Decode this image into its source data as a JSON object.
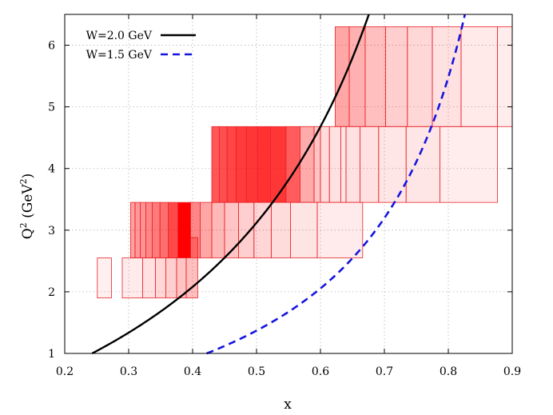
{
  "chart_data": {
    "type": "heatmap",
    "title": "",
    "xlabel": "x",
    "ylabel_main": "Q",
    "ylabel_sup1": "2",
    "ylabel_units": " (GeV",
    "ylabel_sup2": "2",
    "ylabel_close": ")",
    "xlim": [
      0.2,
      0.9
    ],
    "ylim": [
      1,
      6.5
    ],
    "xticks": [
      0.2,
      0.3,
      0.4,
      0.5,
      0.6,
      0.7,
      0.8,
      0.9
    ],
    "xtick_labels": [
      "0.2",
      "0.3",
      "0.4",
      "0.5",
      "0.6",
      "0.7",
      "0.8",
      "0.9"
    ],
    "yticks": [
      1,
      2,
      3,
      4,
      5,
      6
    ],
    "ytick_labels": [
      "1",
      "2",
      "3",
      "4",
      "5",
      "6"
    ],
    "grid": true,
    "legend_position": "top-left",
    "curves": [
      {
        "name": "W=2.0 GeV",
        "W": 2.0,
        "color": "#000000",
        "style": "solid"
      },
      {
        "name": "W=1.5 GeV",
        "W": 1.5,
        "color": "#1515e0",
        "style": "dashed"
      }
    ],
    "bin_color": "#ff0000",
    "bin_rows": [
      {
        "q2_low": 1.9,
        "q2_high": 2.55,
        "bins": [
          {
            "x_lo": 0.251,
            "x_hi": 0.273,
            "intensity": 0.02
          },
          {
            "x_lo": 0.29,
            "x_hi": 0.322,
            "intensity": 0.04
          },
          {
            "x_lo": 0.322,
            "x_hi": 0.342,
            "intensity": 0.08
          },
          {
            "x_lo": 0.342,
            "x_hi": 0.358,
            "intensity": 0.12
          },
          {
            "x_lo": 0.358,
            "x_hi": 0.375,
            "intensity": 0.16
          },
          {
            "x_lo": 0.375,
            "x_hi": 0.39,
            "intensity": 0.2
          }
        ]
      },
      {
        "q2_low": 1.9,
        "q2_high": 2.88,
        "bins": [
          {
            "x_lo": 0.39,
            "x_hi": 0.408,
            "intensity": 0.22
          }
        ]
      },
      {
        "q2_low": 2.55,
        "q2_high": 3.45,
        "bins": [
          {
            "x_lo": 0.303,
            "x_hi": 0.31,
            "intensity": 0.35
          },
          {
            "x_lo": 0.31,
            "x_hi": 0.318,
            "intensity": 0.38
          },
          {
            "x_lo": 0.318,
            "x_hi": 0.327,
            "intensity": 0.4
          },
          {
            "x_lo": 0.327,
            "x_hi": 0.337,
            "intensity": 0.45
          },
          {
            "x_lo": 0.337,
            "x_hi": 0.349,
            "intensity": 0.5
          },
          {
            "x_lo": 0.349,
            "x_hi": 0.362,
            "intensity": 0.55
          },
          {
            "x_lo": 0.362,
            "x_hi": 0.377,
            "intensity": 0.7
          },
          {
            "x_lo": 0.377,
            "x_hi": 0.397,
            "intensity": 1.0
          },
          {
            "x_lo": 0.397,
            "x_hi": 0.412,
            "intensity": 0.45
          },
          {
            "x_lo": 0.412,
            "x_hi": 0.43,
            "intensity": 0.32
          },
          {
            "x_lo": 0.43,
            "x_hi": 0.45,
            "intensity": 0.25
          },
          {
            "x_lo": 0.45,
            "x_hi": 0.472,
            "intensity": 0.2
          },
          {
            "x_lo": 0.472,
            "x_hi": 0.496,
            "intensity": 0.16
          },
          {
            "x_lo": 0.496,
            "x_hi": 0.523,
            "intensity": 0.13
          },
          {
            "x_lo": 0.523,
            "x_hi": 0.553,
            "intensity": 0.1
          },
          {
            "x_lo": 0.553,
            "x_hi": 0.595,
            "intensity": 0.07
          },
          {
            "x_lo": 0.595,
            "x_hi": 0.666,
            "intensity": 0.04
          }
        ]
      },
      {
        "q2_low": 3.45,
        "q2_high": 4.68,
        "bins": [
          {
            "x_lo": 0.43,
            "x_hi": 0.442,
            "intensity": 0.65
          },
          {
            "x_lo": 0.442,
            "x_hi": 0.454,
            "intensity": 0.68
          },
          {
            "x_lo": 0.454,
            "x_hi": 0.468,
            "intensity": 0.72
          },
          {
            "x_lo": 0.468,
            "x_hi": 0.484,
            "intensity": 0.76
          },
          {
            "x_lo": 0.484,
            "x_hi": 0.502,
            "intensity": 0.78
          },
          {
            "x_lo": 0.502,
            "x_hi": 0.522,
            "intensity": 0.8
          },
          {
            "x_lo": 0.522,
            "x_hi": 0.546,
            "intensity": 0.78
          },
          {
            "x_lo": 0.546,
            "x_hi": 0.568,
            "intensity": 0.62
          },
          {
            "x_lo": 0.568,
            "x_hi": 0.59,
            "intensity": 0.3
          },
          {
            "x_lo": 0.59,
            "x_hi": 0.6,
            "intensity": 0.2
          },
          {
            "x_lo": 0.6,
            "x_hi": 0.614,
            "intensity": 0.1
          },
          {
            "x_lo": 0.614,
            "x_hi": 0.632,
            "intensity": 0.08
          },
          {
            "x_lo": 0.632,
            "x_hi": 0.64,
            "intensity": 0.06
          },
          {
            "x_lo": 0.64,
            "x_hi": 0.662,
            "intensity": 0.08
          },
          {
            "x_lo": 0.662,
            "x_hi": 0.691,
            "intensity": 0.08
          },
          {
            "x_lo": 0.691,
            "x_hi": 0.734,
            "intensity": 0.06
          },
          {
            "x_lo": 0.734,
            "x_hi": 0.787,
            "intensity": 0.06
          },
          {
            "x_lo": 0.787,
            "x_hi": 0.877,
            "intensity": 0.03
          }
        ]
      },
      {
        "q2_low": 4.68,
        "q2_high": 6.3,
        "bins": [
          {
            "x_lo": 0.623,
            "x_hi": 0.645,
            "intensity": 0.32
          },
          {
            "x_lo": 0.645,
            "x_hi": 0.67,
            "intensity": 0.28
          },
          {
            "x_lo": 0.67,
            "x_hi": 0.702,
            "intensity": 0.22
          },
          {
            "x_lo": 0.702,
            "x_hi": 0.736,
            "intensity": 0.16
          },
          {
            "x_lo": 0.736,
            "x_hi": 0.775,
            "intensity": 0.12
          },
          {
            "x_lo": 0.775,
            "x_hi": 0.82,
            "intensity": 0.08
          },
          {
            "x_lo": 0.82,
            "x_hi": 0.877,
            "intensity": 0.05
          },
          {
            "x_lo": 0.877,
            "x_hi": 0.9,
            "intensity": 0.03
          }
        ]
      }
    ]
  }
}
